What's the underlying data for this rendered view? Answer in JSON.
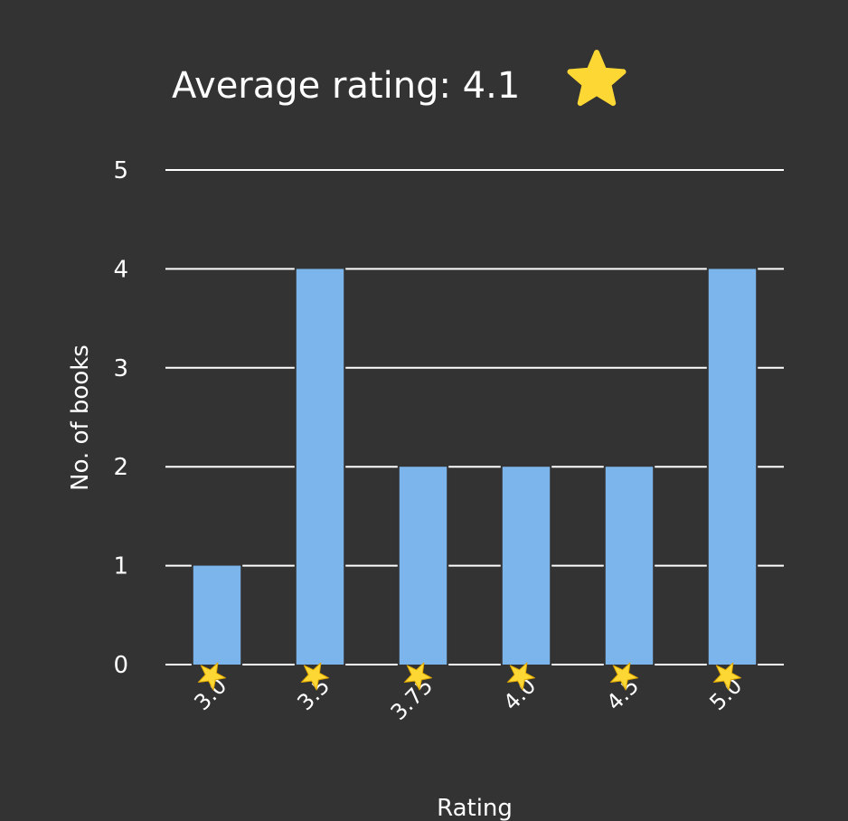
{
  "chart_data": {
    "type": "bar",
    "title": "Average rating: 4.1",
    "title_icon": "star-icon",
    "xlabel": "Rating",
    "ylabel": "No. of books",
    "categories": [
      "3.0",
      "3.5",
      "3.75",
      "4.0",
      "4.5",
      "5.0"
    ],
    "category_icon": "star-icon",
    "values": [
      1,
      4,
      2,
      2,
      2,
      4
    ],
    "ylim": [
      0,
      5
    ],
    "yticks": [
      0,
      1,
      2,
      3,
      4,
      5
    ],
    "grid": true,
    "legend": "none",
    "colors": {
      "background": "#333333",
      "bar": "#7cb4ec",
      "grid": "#ffffff",
      "text": "#ffffff",
      "star": "#fdd835"
    }
  }
}
